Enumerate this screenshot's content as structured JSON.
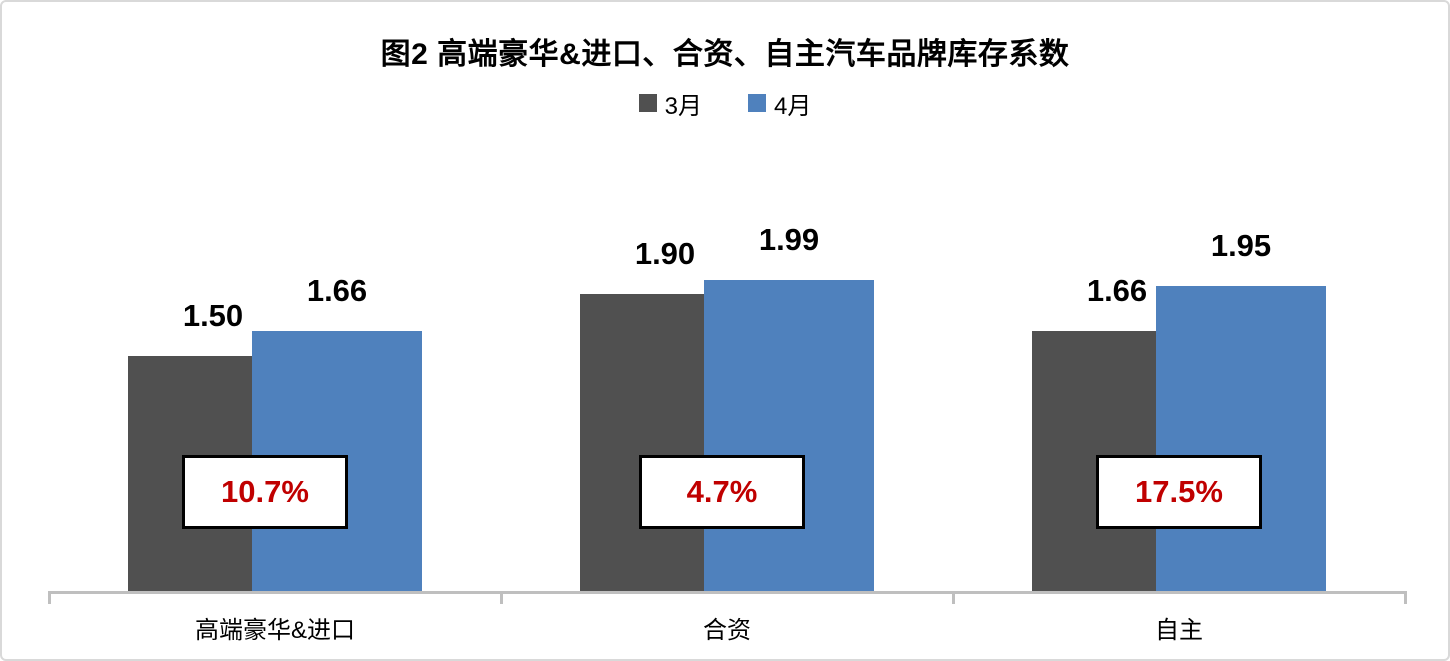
{
  "chart_data": {
    "type": "bar",
    "title": "图2 高端豪华&进口、合资、自主汽车品牌库存系数",
    "categories": [
      "高端豪华&进口",
      "合资",
      "自主"
    ],
    "series": [
      {
        "name": "3月",
        "color": "#505050",
        "values": [
          1.5,
          1.9,
          1.66
        ]
      },
      {
        "name": "4月",
        "color": "#4F81BD",
        "values": [
          1.66,
          1.99,
          1.95
        ]
      }
    ],
    "value_labels": [
      [
        "1.50",
        "1.90",
        "1.66"
      ],
      [
        "1.66",
        "1.99",
        "1.95"
      ]
    ],
    "change_labels": [
      "10.7%",
      "4.7%",
      "17.5%"
    ],
    "change_label_color": "#C00000",
    "ylim": [
      0,
      2.2
    ],
    "grid": false,
    "legend_position": "top",
    "axis_color": "#BFBFBF",
    "label_color": "#000000"
  }
}
